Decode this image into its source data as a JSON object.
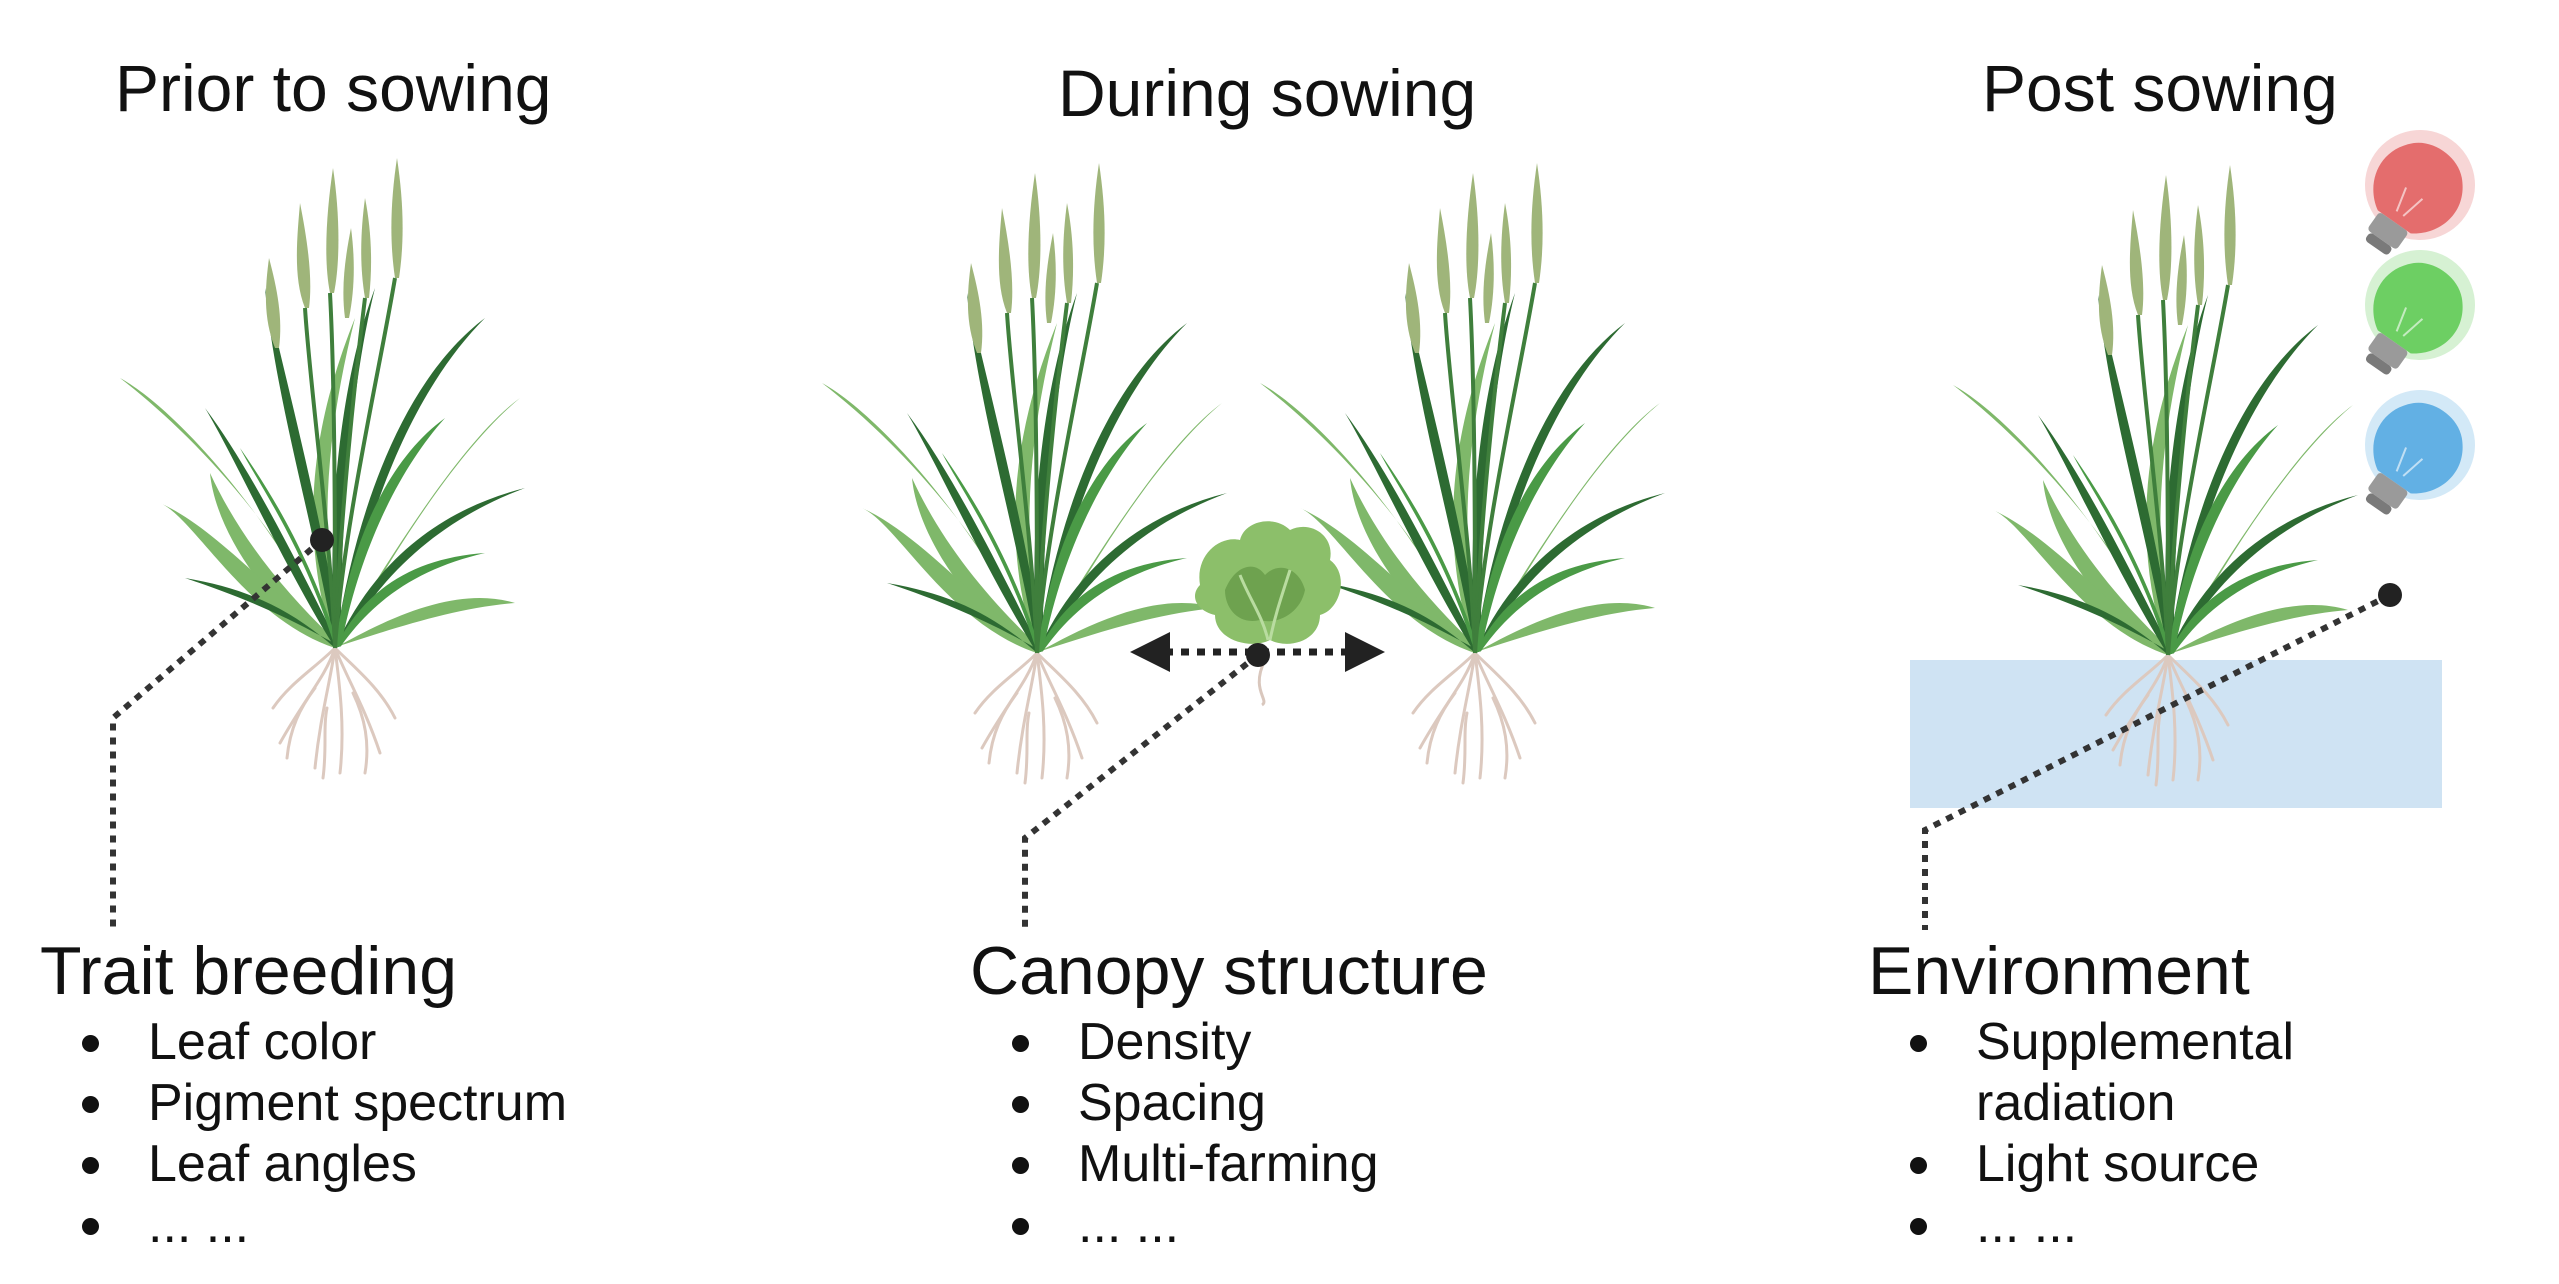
{
  "columns": [
    {
      "id": "prior",
      "title": "Prior to sowing",
      "heading": "Trait breeding",
      "items": [
        "Leaf color",
        "Pigment spectrum",
        "Leaf angles",
        "... ..."
      ]
    },
    {
      "id": "during",
      "title": "During sowing",
      "heading": "Canopy structure",
      "items": [
        "Density",
        "Spacing",
        "Multi-farming",
        "... ..."
      ]
    },
    {
      "id": "post",
      "title": "Post sowing",
      "heading": "Environment",
      "items": [
        "Supplemental",
        "radiation",
        "Light source",
        "... ..."
      ]
    }
  ],
  "colors": {
    "leaf_dark": "#2d6b32",
    "leaf_mid": "#4a9a46",
    "leaf_light": "#7fb86a",
    "spike": "#9fb57a",
    "root": "#d9c7bd",
    "lettuce": "#8cbf6a",
    "water": "#cfe3f3",
    "bulb_red": "#e05a5a",
    "bulb_green": "#5bc94f",
    "bulb_blue": "#4ea6e0",
    "leader": "#333333"
  },
  "icons": [
    "grass-plant-icon",
    "lettuce-icon",
    "double-arrow-icon",
    "light-bulb-icon",
    "water-rectangle"
  ]
}
